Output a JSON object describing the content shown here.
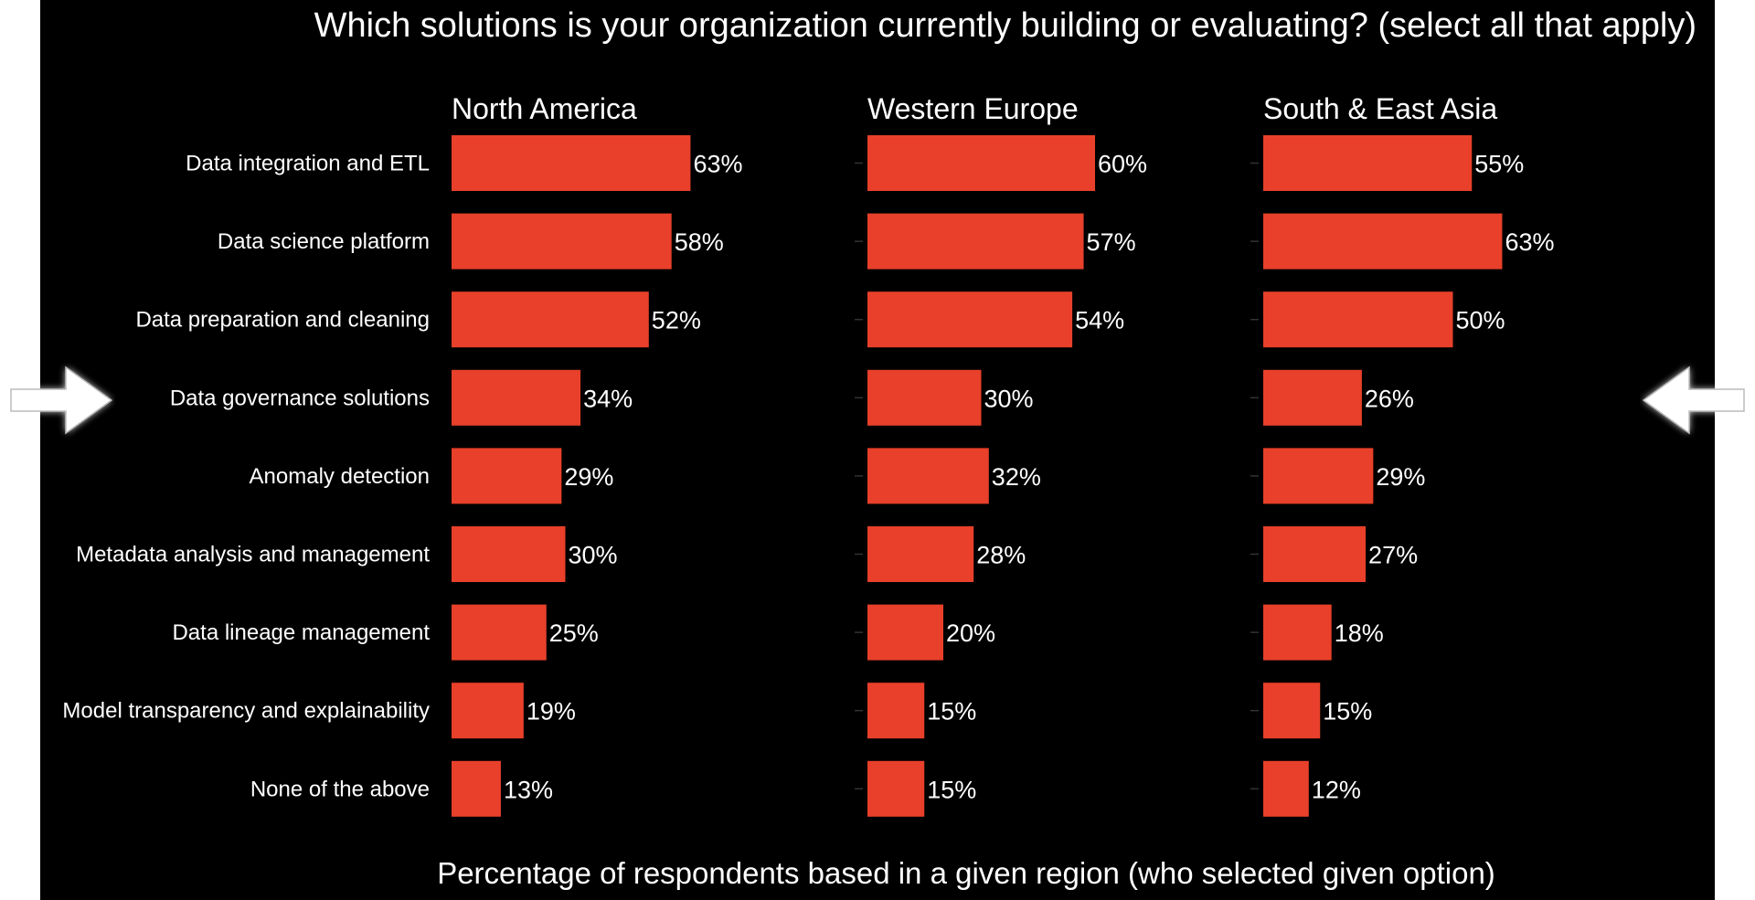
{
  "chart_data": {
    "type": "bar",
    "orientation": "horizontal",
    "title": "Which solutions is your organization currently building or evaluating? (select all that apply)",
    "xlabel": "Percentage of respondents based in a given region (who selected given option)",
    "ylabel": "",
    "categories": [
      "Data integration and ETL",
      "Data science platform",
      "Data preparation and cleaning",
      "Data governance solutions",
      "Anomaly detection",
      "Metadata analysis and management",
      "Data lineage management",
      "Model transparency and explainability",
      "None of the above"
    ],
    "series": [
      {
        "name": "North America",
        "values": [
          63,
          58,
          52,
          34,
          29,
          30,
          25,
          19,
          13
        ]
      },
      {
        "name": "Western Europe",
        "values": [
          60,
          57,
          54,
          30,
          32,
          28,
          20,
          15,
          15
        ]
      },
      {
        "name": "South & East Asia",
        "values": [
          55,
          63,
          50,
          26,
          29,
          27,
          18,
          15,
          12
        ]
      }
    ],
    "value_suffix": "%",
    "highlighted_category": "Data governance solutions",
    "bar_color": "#E8402A",
    "background": "#000000",
    "text_color": "#FFFFFF"
  }
}
